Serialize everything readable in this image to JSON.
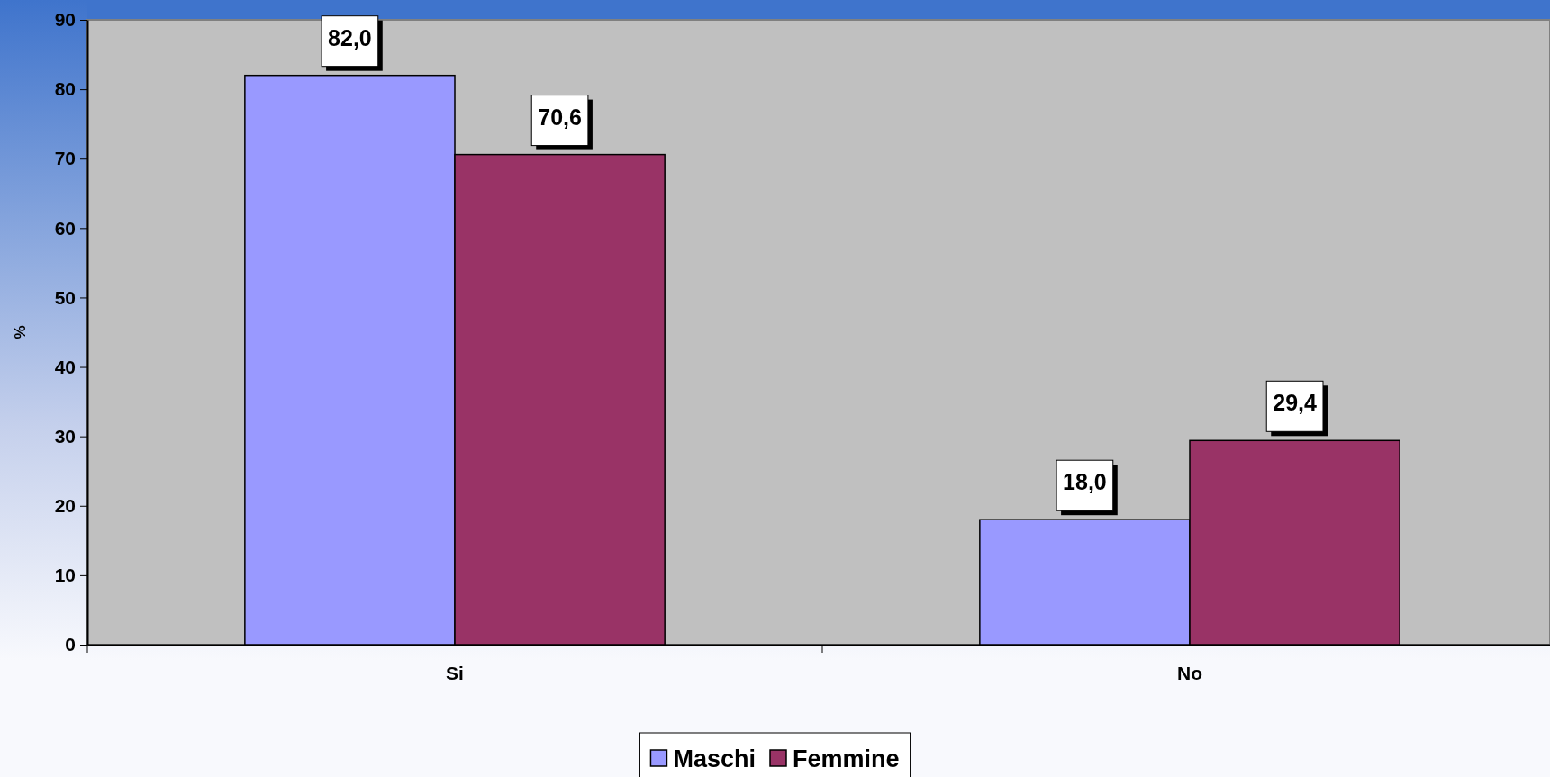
{
  "chart_data": {
    "type": "bar",
    "ylabel": "%",
    "categories": [
      "Si",
      "No"
    ],
    "series": [
      {
        "name": "Maschi",
        "color": "#9999ff",
        "values": [
          82.0,
          18.0
        ],
        "value_labels": [
          "82,0",
          "18,0"
        ]
      },
      {
        "name": "Femmine",
        "color": "#993366",
        "values": [
          70.6,
          29.4
        ],
        "value_labels": [
          "70,6",
          "29,4"
        ]
      }
    ],
    "ylim": [
      0,
      90
    ],
    "yticks": [
      0,
      10,
      20,
      30,
      40,
      50,
      60,
      70,
      80,
      90
    ],
    "grid": false,
    "legend": "bottom"
  }
}
